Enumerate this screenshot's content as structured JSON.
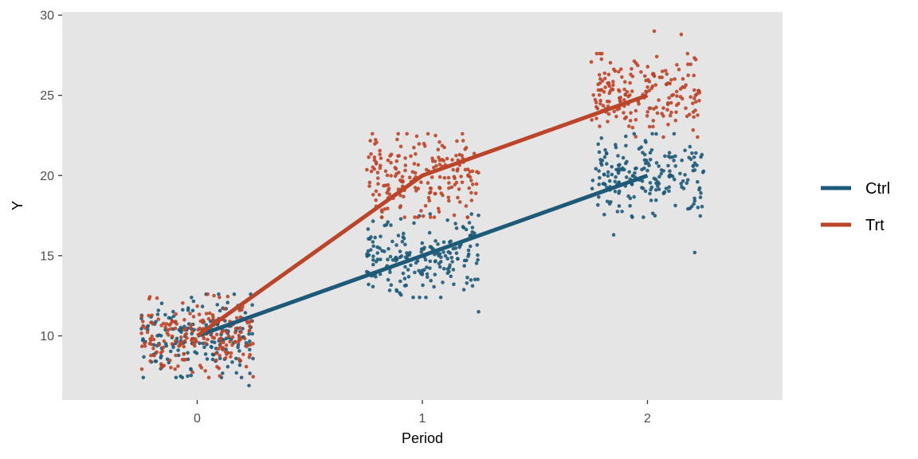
{
  "chart_data": {
    "type": "scatter",
    "xlabel": "Period",
    "ylabel": "Y",
    "xlim": [
      -0.6,
      2.6
    ],
    "ylim": [
      6.0,
      30.2
    ],
    "x_ticks": [
      0,
      1,
      2
    ],
    "x_tick_labels": [
      "0",
      "1",
      "2"
    ],
    "y_ticks": [
      10,
      15,
      20,
      25,
      30
    ],
    "y_tick_labels": [
      "10",
      "15",
      "20",
      "25",
      "30"
    ],
    "jitter_width": 0.25,
    "points_per_group": 200,
    "grid": false,
    "panel_background": "#e5e5e5",
    "legend_position": "right",
    "series": [
      {
        "name": "Ctrl",
        "color": "#1d5a78",
        "x": [
          0,
          1,
          2
        ],
        "means": [
          10.0,
          15.0,
          20.0
        ],
        "spread_sd": 1.2,
        "extremes": [
          [
            0.23,
            6.9
          ],
          [
            1.25,
            11.5
          ],
          [
            1.85,
            16.3
          ],
          [
            2.21,
            15.2
          ]
        ]
      },
      {
        "name": "Trt",
        "color": "#bc4428",
        "x": [
          0,
          1,
          2
        ],
        "means": [
          10.0,
          20.0,
          25.0
        ],
        "spread_sd": 1.2,
        "extremes": [
          [
            0.1,
            7.5
          ],
          [
            0.98,
            17.4
          ],
          [
            2.03,
            29.0
          ],
          [
            2.15,
            28.8
          ]
        ]
      }
    ]
  }
}
